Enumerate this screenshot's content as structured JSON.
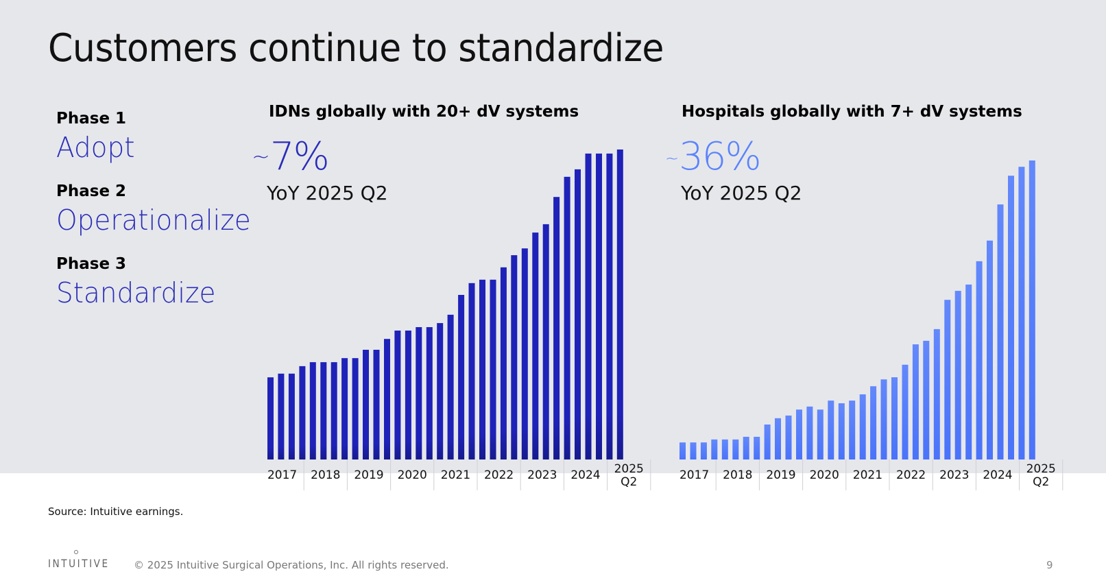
{
  "slide": {
    "title": "Customers continue to standardize",
    "phases": [
      {
        "label": "Phase 1",
        "name": "Adopt"
      },
      {
        "label": "Phase 2",
        "name": "Operationalize"
      },
      {
        "label": "Phase 3",
        "name": "Standardize"
      }
    ],
    "source": "Source: Intuitive earnings.",
    "logo": "INTUITIVE",
    "copyright": "© 2025 Intuitive Surgical Operations, Inc. All rights reserved.",
    "page_number": "9",
    "colors": {
      "background": "#e6e7eb",
      "phase_accent": "#2a2db8",
      "left_bars": "#1f22b8",
      "right_bars": "#5b83fb"
    }
  },
  "chart_data": [
    {
      "type": "bar",
      "title": "IDNs globally with 20+ dV systems",
      "stat": {
        "tilde": "~",
        "value": "7%",
        "label": "YoY 2025 Q2",
        "color": "#2a2db8"
      },
      "xlabel": "",
      "ylabel": "",
      "y_axis_shown": false,
      "values_note": "Relative bar heights (index, max bar = 100); no y-axis scale printed",
      "grid": false,
      "legend": "none",
      "tick_labels": [
        "2017",
        "2018",
        "2019",
        "2020",
        "2021",
        "2022",
        "2023",
        "2024",
        "2025 Q2"
      ],
      "categories": [
        "2017 Q1",
        "2017 Q2",
        "2017 Q3",
        "2017 Q4",
        "2018 Q1",
        "2018 Q2",
        "2018 Q3",
        "2018 Q4",
        "2019 Q1",
        "2019 Q2",
        "2019 Q3",
        "2019 Q4",
        "2020 Q1",
        "2020 Q2",
        "2020 Q3",
        "2020 Q4",
        "2021 Q1",
        "2021 Q2",
        "2021 Q3",
        "2021 Q4",
        "2022 Q1",
        "2022 Q2",
        "2022 Q3",
        "2022 Q4",
        "2023 Q1",
        "2023 Q2",
        "2023 Q3",
        "2023 Q4",
        "2024 Q1",
        "2024 Q2",
        "2024 Q3",
        "2024 Q4",
        "2025 Q1",
        "2025 Q2"
      ],
      "values": [
        26.5,
        27.7,
        27.7,
        30.1,
        31.4,
        31.4,
        31.4,
        32.7,
        32.7,
        35.4,
        35.4,
        38.9,
        41.6,
        41.6,
        42.7,
        42.7,
        44.0,
        46.7,
        53.1,
        56.9,
        58.0,
        58.0,
        62.0,
        65.9,
        68.1,
        73.2,
        75.9,
        84.7,
        91.2,
        93.6,
        98.7,
        98.7,
        98.7,
        100
      ],
      "ylim": [
        0,
        100
      ],
      "bar_color": "#1f22b8"
    },
    {
      "type": "bar",
      "title": "Hospitals globally with 7+ dV systems",
      "stat": {
        "tilde": "~",
        "value": "36%",
        "label": "YoY 2025 Q2",
        "color": "#5b83fb"
      },
      "xlabel": "",
      "ylabel": "",
      "y_axis_shown": false,
      "values_note": "Relative bar heights (index, max bar = 100); no y-axis scale printed",
      "grid": false,
      "legend": "none",
      "tick_labels": [
        "2017",
        "2018",
        "2019",
        "2020",
        "2021",
        "2022",
        "2023",
        "2024",
        "2025 Q2"
      ],
      "categories": [
        "2017 Q1",
        "2017 Q2",
        "2017 Q3",
        "2017 Q4",
        "2018 Q1",
        "2018 Q2",
        "2018 Q3",
        "2018 Q4",
        "2019 Q1",
        "2019 Q2",
        "2019 Q3",
        "2019 Q4",
        "2020 Q1",
        "2020 Q2",
        "2020 Q3",
        "2020 Q4",
        "2021 Q1",
        "2021 Q2",
        "2021 Q3",
        "2021 Q4",
        "2022 Q1",
        "2022 Q2",
        "2022 Q3",
        "2022 Q4",
        "2023 Q1",
        "2023 Q2",
        "2023 Q3",
        "2023 Q4",
        "2024 Q1",
        "2024 Q2",
        "2024 Q3",
        "2024 Q4",
        "2025 Q1",
        "2025 Q2"
      ],
      "values": [
        5.7,
        5.7,
        5.7,
        6.7,
        6.7,
        6.7,
        7.6,
        7.6,
        11.7,
        13.8,
        14.7,
        16.7,
        17.7,
        16.7,
        19.7,
        18.8,
        19.7,
        21.8,
        24.5,
        26.8,
        27.5,
        31.7,
        38.5,
        39.7,
        43.6,
        53.4,
        56.4,
        58.5,
        66.3,
        73.2,
        85.3,
        94.9,
        97.9,
        100
      ],
      "ylim": [
        0,
        100
      ],
      "bar_color": "#5b83fb"
    }
  ]
}
